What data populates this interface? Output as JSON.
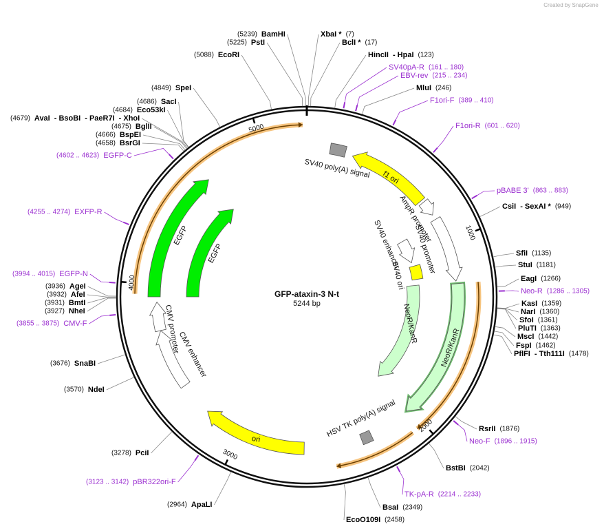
{
  "attribution": "Created by SnapGene",
  "plasmid": {
    "name": "GFP-ataxin-3 N-t",
    "length": "5244 bp"
  },
  "ring_ticks": [
    1000,
    2000,
    3000,
    4000,
    5000
  ],
  "sites": [
    {
      "names": [
        "BamHI"
      ],
      "position": "(5239)"
    },
    {
      "names": [
        "PstI"
      ],
      "position": "(5225)"
    },
    {
      "names": [
        "EcoRI"
      ],
      "position": "(5088)"
    },
    {
      "names": [
        "XbaI *"
      ],
      "position": "(7)"
    },
    {
      "names": [
        "BclI *"
      ],
      "position": "(17)"
    },
    {
      "names": [
        "HincII",
        "- HpaI"
      ],
      "position": "(123)"
    },
    {
      "names": [
        "MluI"
      ],
      "position": "(246)"
    },
    {
      "names": [
        "CsiI",
        "- SexAI *"
      ],
      "position": "(949)"
    },
    {
      "names": [
        "SfiI"
      ],
      "position": "(1135)"
    },
    {
      "names": [
        "StuI"
      ],
      "position": "(1181)"
    },
    {
      "names": [
        "EagI"
      ],
      "position": "(1266)"
    },
    {
      "names": [
        "KasI"
      ],
      "position": "(1359)"
    },
    {
      "names": [
        "NarI"
      ],
      "position": "(1360)"
    },
    {
      "names": [
        "SfoI"
      ],
      "position": "(1361)"
    },
    {
      "names": [
        "PluTI"
      ],
      "position": "(1363)"
    },
    {
      "names": [
        "MscI"
      ],
      "position": "(1442)"
    },
    {
      "names": [
        "FspI"
      ],
      "position": "(1462)"
    },
    {
      "names": [
        "PflFI",
        "- Tth111I"
      ],
      "position": "(1478)"
    },
    {
      "names": [
        "RsrII"
      ],
      "position": "(1876)"
    },
    {
      "names": [
        "BstBI"
      ],
      "position": "(2042)"
    },
    {
      "names": [
        "BsaI"
      ],
      "position": "(2349)"
    },
    {
      "names": [
        "EcoO109I"
      ],
      "position": "(2458)"
    },
    {
      "names": [
        "ApaLI"
      ],
      "position": "(2964)"
    },
    {
      "names": [
        "PciI"
      ],
      "position": "(3278)"
    },
    {
      "names": [
        "NdeI"
      ],
      "position": "(3570)"
    },
    {
      "names": [
        "SnaBI"
      ],
      "position": "(3676)"
    },
    {
      "names": [
        "NheI"
      ],
      "position": "(3927)"
    },
    {
      "names": [
        "BmtI"
      ],
      "position": "(3931)"
    },
    {
      "names": [
        "AfeI"
      ],
      "position": "(3932)"
    },
    {
      "names": [
        "AgeI"
      ],
      "position": "(3936)"
    },
    {
      "names": [
        "BsrGI"
      ],
      "position": "(4658)"
    },
    {
      "names": [
        "BspEI"
      ],
      "position": "(4666)"
    },
    {
      "names": [
        "BglII"
      ],
      "position": "(4675)"
    },
    {
      "names": [
        "AvaI",
        "- BsoBI",
        "- PaeR7I",
        "- XhoI"
      ],
      "position": "(4679)"
    },
    {
      "names": [
        "Eco53kI"
      ],
      "position": "(4684)"
    },
    {
      "names": [
        "SacI"
      ],
      "position": "(4686)"
    },
    {
      "names": [
        "SpeI"
      ],
      "position": "(4849)"
    }
  ],
  "primers": [
    {
      "name": "SV40pA-R",
      "range": "(161 .. 180)"
    },
    {
      "name": "EBV-rev",
      "range": "(215 .. 234)"
    },
    {
      "name": "F1ori-F",
      "range": "(389 .. 410)"
    },
    {
      "name": "F1ori-R",
      "range": "(601 .. 620)"
    },
    {
      "name": "pBABE 3'",
      "range": "(863 .. 883)"
    },
    {
      "name": "Neo-R",
      "range": "(1286 .. 1305)"
    },
    {
      "name": "Neo-F",
      "range": "(1896 .. 1915)"
    },
    {
      "name": "TK-pA-R",
      "range": "(2214 .. 2233)"
    },
    {
      "name": "pBR322ori-F",
      "range": "(3123 .. 3142)"
    },
    {
      "name": "CMV-F",
      "range": "(3855 .. 3875)"
    },
    {
      "name": "EGFP-N",
      "range": "(3994 .. 4015)"
    },
    {
      "name": "EXFP-R",
      "range": "(4255 .. 4274)"
    },
    {
      "name": "EGFP-C",
      "range": "(4602 .. 4623)"
    }
  ],
  "features": [
    "f1 ori",
    "SV40 poly(A) signal",
    "AmpR promoter",
    "SV40 promoter",
    "SV40 enhancer",
    "SV40 ori",
    "NeoR/KanR",
    "NeoR/KanR",
    "HSV TK poly(A) signal",
    "ori",
    "CMV enhancer",
    "CMV promoter",
    "EGFP",
    "EGFP"
  ]
}
